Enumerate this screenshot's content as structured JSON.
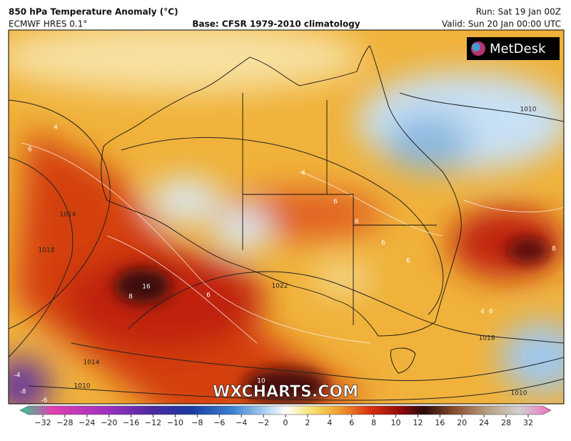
{
  "header": {
    "title": "850 hPa Temperature Anomaly (°C)",
    "model": "ECMWF HRES 0.1°",
    "base": "Base: CFSR 1979-2010 climatology",
    "run": "Run: Sat 19 Jan 00Z",
    "valid": "Valid: Sun 20 Jan 00:00 UTC"
  },
  "logo": "MetDesk",
  "watermark": "WXCHARTS.COM",
  "isobar_labels": [
    "1010",
    "1014",
    "1018",
    "1022",
    "1018",
    "1014",
    "1010",
    "1010"
  ],
  "anomaly_labels": [
    "4",
    "6",
    "6",
    "4",
    "6",
    "6",
    "6",
    "8",
    "16",
    "8",
    "6",
    "4",
    "6",
    "10",
    "-4",
    "-6",
    "-8"
  ],
  "colorbar": {
    "labels": [
      "−32",
      "−28",
      "−24",
      "−20",
      "−16",
      "−12",
      "−10",
      "−8",
      "−6",
      "−4",
      "−2",
      "0",
      "2",
      "4",
      "6",
      "8",
      "10",
      "12",
      "16",
      "20",
      "24",
      "28",
      "32"
    ]
  }
}
